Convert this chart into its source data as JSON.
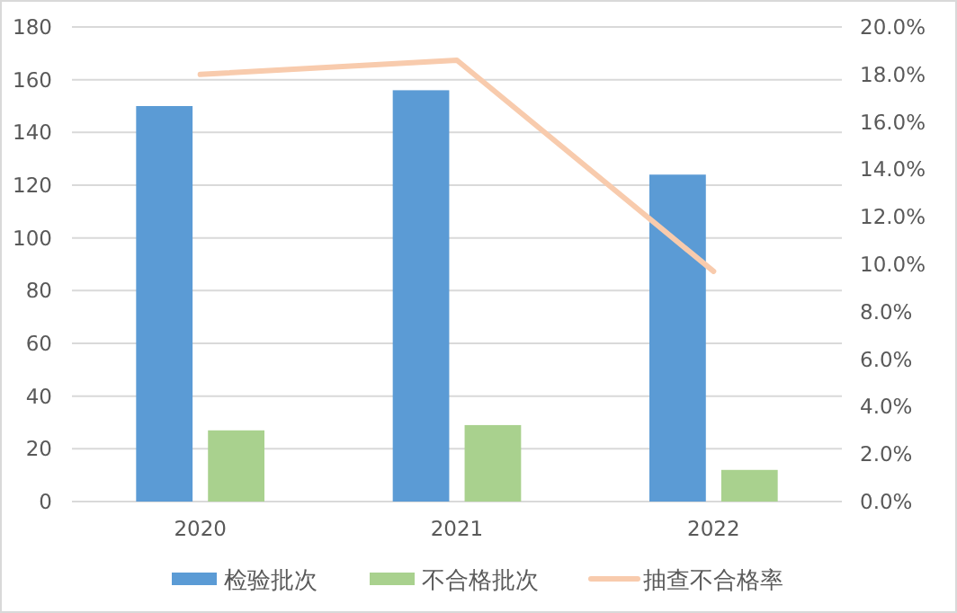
{
  "chart_data": {
    "type": "bar",
    "categories": [
      "2020",
      "2021",
      "2022"
    ],
    "series": [
      {
        "name": "检验批次",
        "color": "#5b9bd5",
        "values": [
          150,
          156,
          124
        ]
      },
      {
        "name": "不合格批次",
        "color": "#a9d18e",
        "values": [
          27,
          29,
          12
        ]
      },
      {
        "name": "抽查不合格率",
        "type": "line",
        "axis": "y2",
        "color": "#f8cbad",
        "values": [
          18.0,
          18.6,
          9.7
        ]
      }
    ],
    "ylim": [
      0,
      180
    ],
    "yticks": [
      0,
      20,
      40,
      60,
      80,
      100,
      120,
      140,
      160,
      180
    ],
    "y2lim": [
      0,
      20
    ],
    "y2ticks": [
      {
        "value": 0,
        "label": "0.0%"
      },
      {
        "value": 2,
        "label": "2.0%"
      },
      {
        "value": 4,
        "label": "4.0%"
      },
      {
        "value": 6,
        "label": "6.0%"
      },
      {
        "value": 8,
        "label": "8.0%"
      },
      {
        "value": 10,
        "label": "10.0%"
      },
      {
        "value": 12,
        "label": "12.0%"
      },
      {
        "value": 14,
        "label": "14.0%"
      },
      {
        "value": 16,
        "label": "16.0%"
      },
      {
        "value": 18,
        "label": "18.0%"
      },
      {
        "value": 20,
        "label": "20.0%"
      }
    ],
    "grid": "y",
    "legend": "bottom"
  }
}
